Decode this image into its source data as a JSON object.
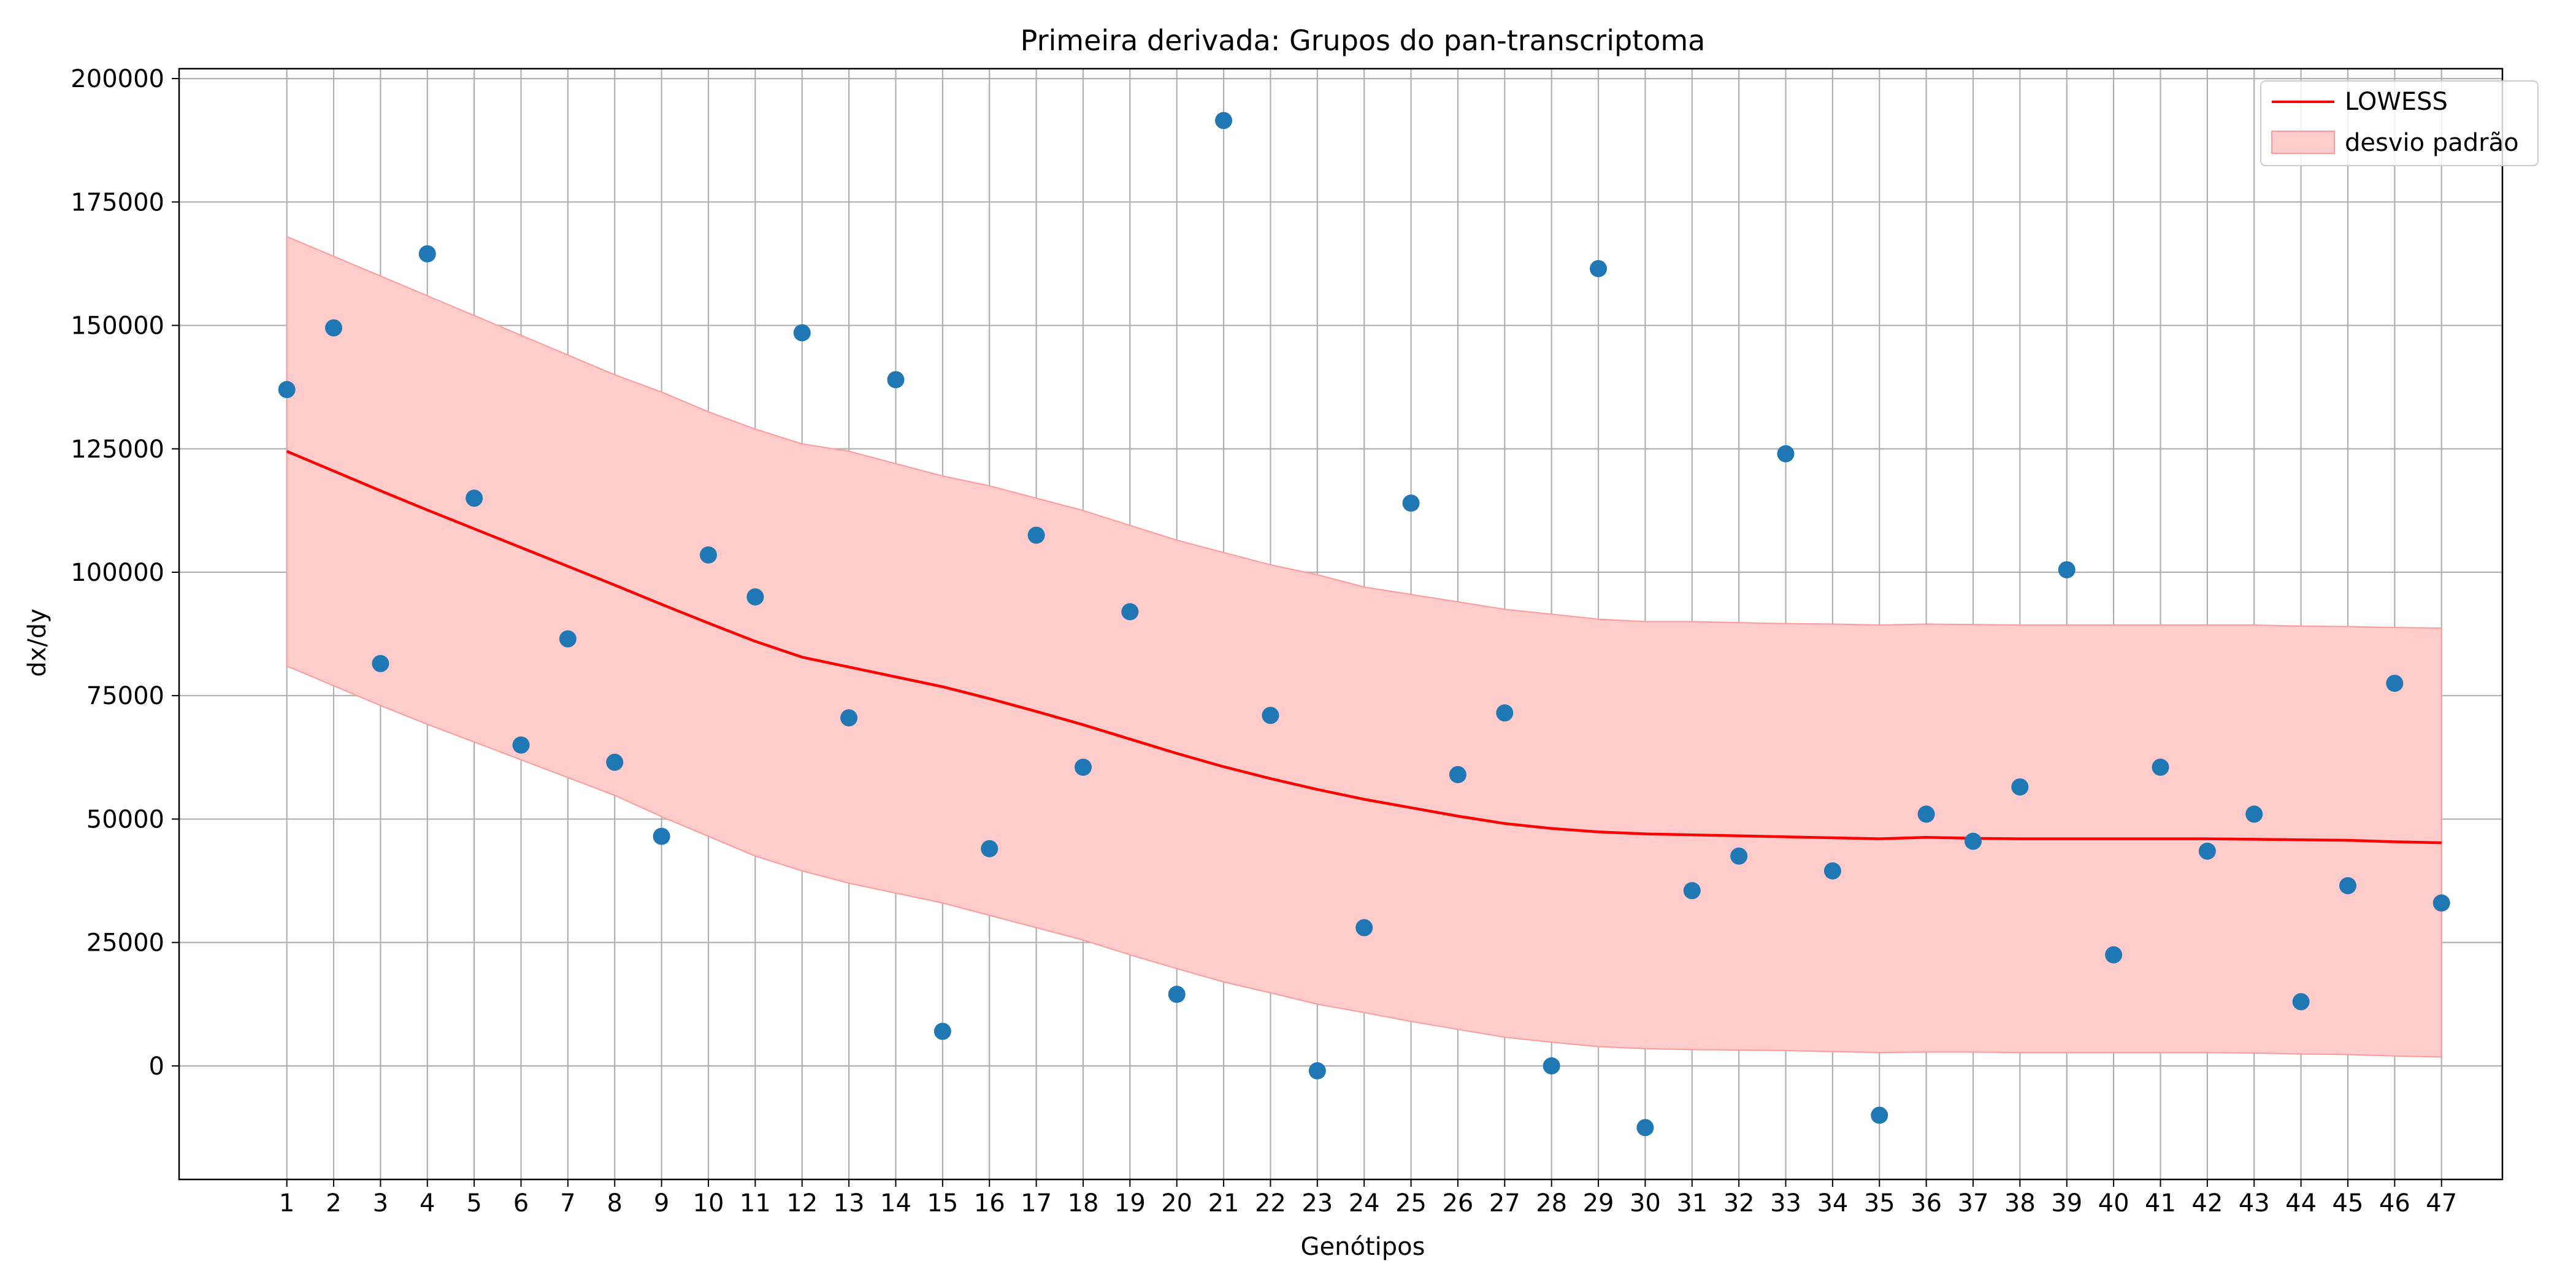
{
  "chart_data": {
    "type": "scatter",
    "title": "Primeira derivada: Grupos do pan-transcriptoma",
    "xlabel": "Genótipos",
    "ylabel": "dx/dy",
    "xlim": [
      -1.3,
      48.3
    ],
    "ylim": [
      -23000,
      202000
    ],
    "x_ticks": [
      1,
      2,
      3,
      4,
      5,
      6,
      7,
      8,
      9,
      10,
      11,
      12,
      13,
      14,
      15,
      16,
      17,
      18,
      19,
      20,
      21,
      22,
      23,
      24,
      25,
      26,
      27,
      28,
      29,
      30,
      31,
      32,
      33,
      34,
      35,
      36,
      37,
      38,
      39,
      40,
      41,
      42,
      43,
      44,
      45,
      46,
      47
    ],
    "y_ticks": [
      0,
      25000,
      50000,
      75000,
      100000,
      125000,
      150000,
      175000,
      200000
    ],
    "grid": true,
    "legend_position": "top-right",
    "colors": {
      "points": "#1f77b4",
      "lowess": "#ff0000",
      "band_fill": "#ffcccc",
      "band_edge": "#ff9a9a",
      "grid": "#b0b0b0"
    },
    "series": [
      {
        "name": "pontos",
        "kind": "scatter",
        "x": [
          1,
          2,
          3,
          4,
          5,
          6,
          7,
          8,
          9,
          10,
          11,
          12,
          13,
          14,
          15,
          16,
          17,
          18,
          19,
          20,
          21,
          22,
          23,
          24,
          25,
          26,
          27,
          28,
          29,
          30,
          31,
          32,
          33,
          34,
          35,
          36,
          37,
          38,
          39,
          40,
          41,
          42,
          43,
          44,
          45,
          46,
          47
        ],
        "y": [
          137000,
          149500,
          81500,
          164500,
          115000,
          65000,
          86500,
          61500,
          46500,
          103500,
          95000,
          148500,
          70500,
          139000,
          7000,
          44000,
          107500,
          60500,
          92000,
          14500,
          191500,
          71000,
          -1000,
          28000,
          114000,
          59000,
          71500,
          0,
          161500,
          -12500,
          35500,
          42500,
          124000,
          39500,
          -10000,
          51000,
          45500,
          56500,
          100500,
          22500,
          60500,
          43500,
          51000,
          13000,
          36500,
          77500,
          33000
        ]
      },
      {
        "name": "LOWESS",
        "kind": "line",
        "x": [
          1,
          2,
          3,
          4,
          5,
          6,
          7,
          8,
          9,
          10,
          11,
          12,
          13,
          14,
          15,
          16,
          17,
          18,
          19,
          20,
          21,
          22,
          23,
          24,
          25,
          26,
          27,
          28,
          29,
          30,
          31,
          32,
          33,
          34,
          35,
          36,
          37,
          38,
          39,
          40,
          41,
          42,
          43,
          44,
          45,
          46,
          47
        ],
        "y": [
          124500,
          120500,
          116500,
          112600,
          108800,
          105000,
          101200,
          97400,
          93500,
          89700,
          86000,
          82800,
          80800,
          78800,
          76800,
          74400,
          71800,
          69100,
          66200,
          63300,
          60600,
          58200,
          56000,
          54000,
          52300,
          50600,
          49100,
          48100,
          47400,
          47000,
          46800,
          46600,
          46400,
          46200,
          46000,
          46300,
          46100,
          46000,
          46000,
          46000,
          46000,
          46000,
          45900,
          45800,
          45700,
          45400,
          45200
        ]
      },
      {
        "name": "desvio padrão",
        "kind": "band",
        "x": [
          1,
          2,
          3,
          4,
          5,
          6,
          7,
          8,
          9,
          10,
          11,
          12,
          13,
          14,
          15,
          16,
          17,
          18,
          19,
          20,
          21,
          22,
          23,
          24,
          25,
          26,
          27,
          28,
          29,
          30,
          31,
          32,
          33,
          34,
          35,
          36,
          37,
          38,
          39,
          40,
          41,
          42,
          43,
          44,
          45,
          46,
          47
        ],
        "upper": [
          168000,
          164000,
          160000,
          156000,
          152000,
          148000,
          144000,
          140000,
          136500,
          132500,
          129000,
          126000,
          124500,
          122000,
          119500,
          117500,
          115000,
          112500,
          109500,
          106500,
          104000,
          101500,
          99500,
          97000,
          95500,
          94000,
          92500,
          91500,
          90500,
          90000,
          90000,
          89800,
          89600,
          89500,
          89300,
          89500,
          89400,
          89300,
          89300,
          89300,
          89300,
          89300,
          89300,
          89100,
          89000,
          88800,
          88700
        ],
        "lower": [
          81000,
          77000,
          73000,
          69200,
          65600,
          62000,
          58400,
          54800,
          50500,
          46500,
          42500,
          39500,
          37000,
          35000,
          33000,
          30500,
          28000,
          25500,
          22500,
          19700,
          17000,
          14800,
          12500,
          10800,
          9000,
          7400,
          5800,
          4800,
          3900,
          3500,
          3300,
          3200,
          3100,
          2900,
          2700,
          2800,
          2800,
          2700,
          2700,
          2700,
          2700,
          2700,
          2600,
          2400,
          2300,
          2000,
          1800
        ]
      }
    ]
  }
}
